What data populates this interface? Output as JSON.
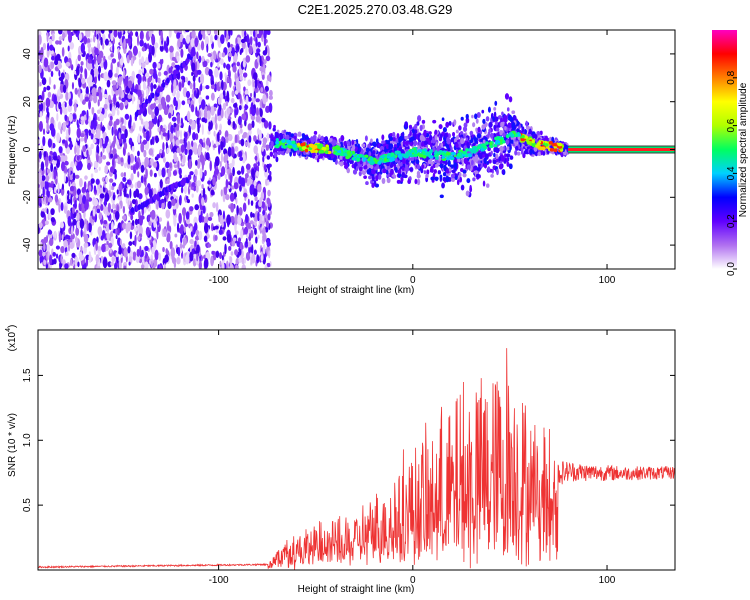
{
  "title": "C2E1.2025.270.03.48.G29",
  "chart_data": [
    {
      "type": "heatmap",
      "name": "spectrogram",
      "xlabel": "Height of straight line (km)",
      "ylabel": "Frequency (Hz)",
      "xlim": [
        -193,
        135
      ],
      "ylim": [
        -50,
        50
      ],
      "xticks": [
        -100,
        0,
        100
      ],
      "xtick_labels": [
        "-100",
        "0",
        "100"
      ],
      "yticks": [
        -40,
        -20,
        0,
        20,
        40
      ],
      "ytick_labels": [
        "-40",
        "-20",
        "0",
        "20",
        "40"
      ],
      "noise_region_x": [
        -193,
        -73
      ],
      "signal_start_x": -73,
      "constant_tone_x": [
        80,
        135
      ],
      "constant_tone_freq": 0,
      "streaks": [
        {
          "x": [
            -142,
            -113
          ],
          "y": [
            15,
            40
          ]
        },
        {
          "x": [
            -145,
            -115
          ],
          "y": [
            -26,
            -12
          ]
        }
      ],
      "colorbar": {
        "label": "Normalized spectral amplitude",
        "ticks": [
          0.0,
          0.2,
          0.4,
          0.6,
          0.8
        ],
        "tick_labels": [
          "0.0",
          "0.2",
          "0.4",
          "0.6",
          "0.8"
        ],
        "range": [
          0,
          1
        ],
        "colors": [
          "#ffffff",
          "#b070f0",
          "#6000ff",
          "#0000ff",
          "#00d0ff",
          "#00ff60",
          "#b0ff00",
          "#ffff00",
          "#ff8000",
          "#ff0000",
          "#ff00c0"
        ]
      }
    },
    {
      "type": "line",
      "name": "snr",
      "xlabel": "Height of straight line (km)",
      "ylabel": "SNR (10 * v/v)",
      "y_multiplier": "(x10",
      "y_multiplier_exp": "4",
      "y_multiplier_close": ")",
      "xlim": [
        -193,
        135
      ],
      "ylim": [
        0,
        1.85
      ],
      "xticks": [
        -100,
        0,
        100
      ],
      "xtick_labels": [
        "-100",
        "0",
        "100"
      ],
      "yticks": [
        0.5,
        1.0,
        1.5
      ],
      "ytick_labels": [
        "0.5",
        "1.0",
        "1.5"
      ],
      "series": [
        {
          "name": "SNR",
          "color": "#ee3333",
          "envelope_x": [
            -193,
            -150,
            -100,
            -75,
            -65,
            -60,
            -50,
            -40,
            -30,
            -20,
            -10,
            0,
            10,
            20,
            30,
            40,
            45,
            50,
            55,
            60,
            68,
            75,
            90,
            110,
            135
          ],
          "envelope_y": [
            0.02,
            0.03,
            0.04,
            0.05,
            0.25,
            0.3,
            0.32,
            0.38,
            0.42,
            0.55,
            0.75,
            0.95,
            1.1,
            1.3,
            1.45,
            1.6,
            1.65,
            1.8,
            1.55,
            1.25,
            0.95,
            0.85,
            0.82,
            0.8,
            0.8
          ],
          "base_x": [
            -193,
            -75,
            -65,
            -40,
            -20,
            0,
            20,
            40,
            60,
            68,
            80,
            135
          ],
          "base_y": [
            0.02,
            0.04,
            0.12,
            0.15,
            0.2,
            0.25,
            0.3,
            0.3,
            0.35,
            0.6,
            0.68,
            0.7
          ]
        }
      ]
    }
  ]
}
